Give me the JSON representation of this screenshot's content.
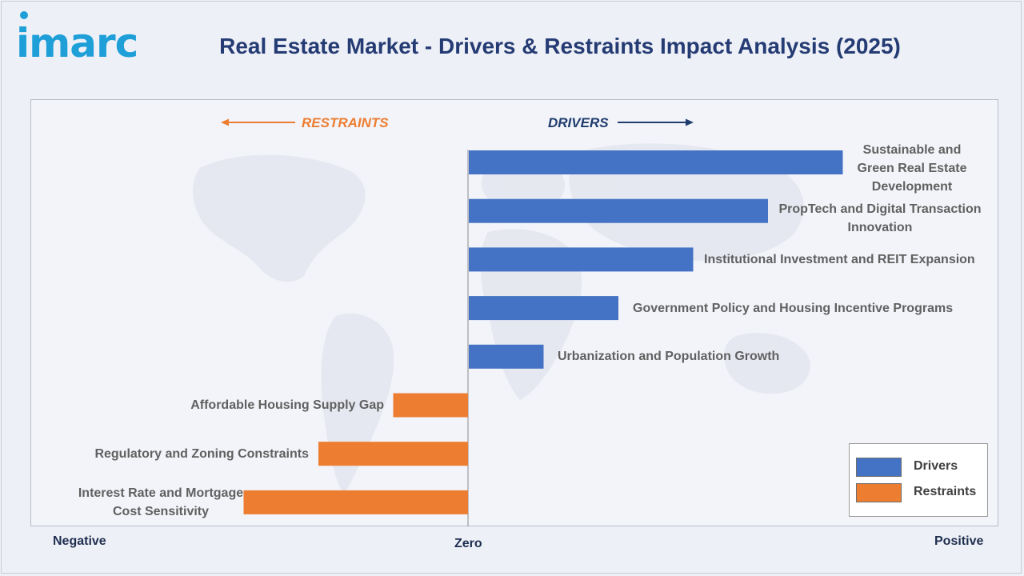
{
  "title": "Real Estate Market - Drivers & Restraints Impact Analysis (2025)",
  "logo": {
    "text": "imarc",
    "color": "#1f9fd8"
  },
  "directions": {
    "restraints": "RESTRAINTS",
    "drivers": "DRIVERS"
  },
  "colors": {
    "drivers": "#4472c4",
    "restraints": "#ed7d31",
    "title": "#243b73"
  },
  "legend": {
    "placement": "bottom-right",
    "items": [
      {
        "label": "Drivers",
        "color": "#4472c4"
      },
      {
        "label": "Restraints",
        "color": "#ed7d31"
      }
    ]
  },
  "chart_data": {
    "type": "bar",
    "orientation": "horizontal",
    "title": "Real Estate Market - Drivers & Restraints Impact Analysis (2025)",
    "xlabel_negative": "Negative",
    "xlabel_zero": "Zero",
    "xlabel_positive": "Positive",
    "xlim": [
      -6,
      10
    ],
    "grid": false,
    "series": [
      {
        "name": "Drivers",
        "color": "#4472c4"
      },
      {
        "name": "Restraints",
        "color": "#ed7d31"
      }
    ],
    "categories": [
      "Sustainable and Green Real Estate Development",
      "PropTech and Digital Transaction Innovation",
      "Institutional Investment and REIT Expansion",
      "Government Policy and Housing Incentive Programs",
      "Urbanization and Population Growth",
      "Affordable Housing Supply Gap",
      "Regulatory and Zoning Constraints",
      "Interest Rate and Mortgage Cost Sensitivity"
    ],
    "values": [
      5,
      4,
      3,
      2,
      1,
      -1,
      -2,
      -3
    ],
    "kinds": [
      "Drivers",
      "Drivers",
      "Drivers",
      "Drivers",
      "Drivers",
      "Restraints",
      "Restraints",
      "Restraints"
    ]
  }
}
